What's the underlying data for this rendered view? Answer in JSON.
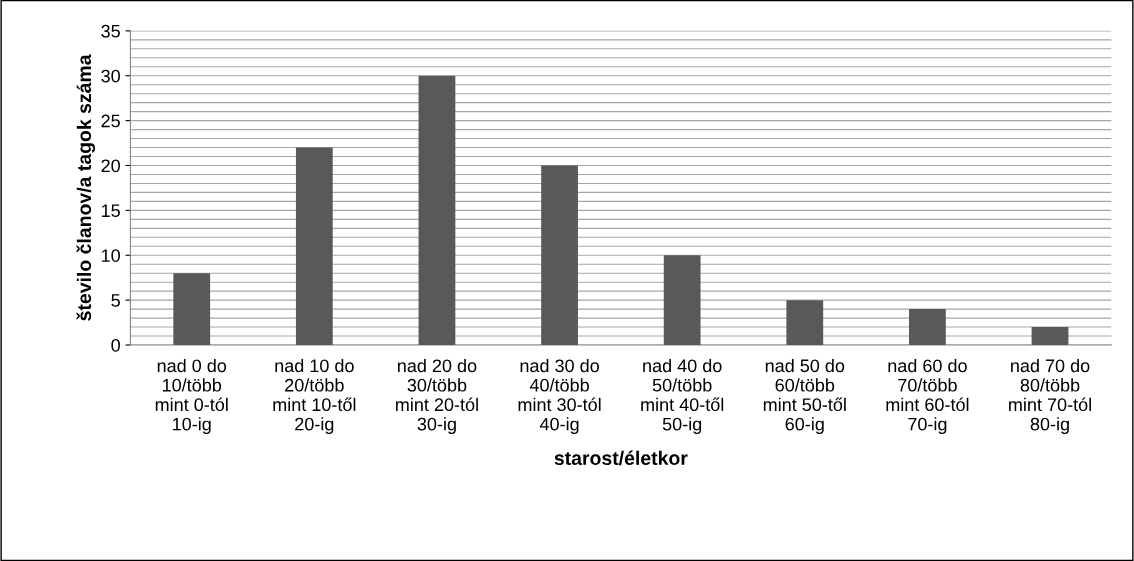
{
  "chart_data": {
    "type": "bar",
    "categories": [
      "nad 0 do\n10/több\nmint 0-tól\n10-ig",
      "nad 10 do\n20/több\nmint 10-től\n20-ig",
      "nad 20 do\n30/több\nmint 20-tól\n30-ig",
      "nad 30 do\n40/több\nmint 30-tól\n40-ig",
      "nad 40 do\n50/több\nmint 40-től\n50-ig",
      "nad 50 do\n60/több\nmint 50-től\n60-ig",
      "nad 60 do\n70/több\nmint 60-tól\n70-ig",
      "nad 70 do\n80/több\nmint 70-tól\n80-ig"
    ],
    "values": [
      8,
      22,
      30,
      20,
      10,
      5,
      4,
      2
    ],
    "color": "#595959",
    "xlabel": "starost/életkor",
    "ylabel": "število članov/a tagok száma",
    "ylim": [
      0,
      35
    ],
    "yticks": [
      0,
      5,
      10,
      15,
      20,
      25,
      30,
      35
    ],
    "grid": "y",
    "legend": false
  }
}
